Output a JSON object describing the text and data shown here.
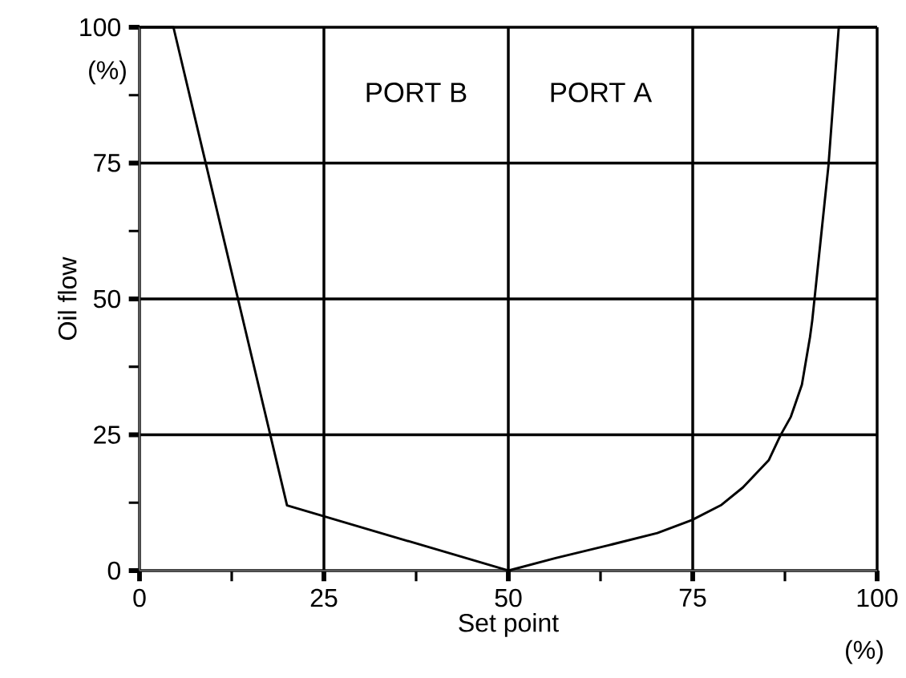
{
  "chart_data": {
    "type": "line",
    "xlabel": "Set point",
    "ylabel": "Oil flow",
    "x": [
      0,
      4.6,
      20,
      50,
      56.4,
      63.7,
      70.2,
      74.9,
      78.9,
      81.8,
      85.3,
      86.9,
      88.3,
      89.8,
      90.9,
      91.2,
      93.4,
      94.8,
      100
    ],
    "values": [
      100,
      100,
      12,
      0,
      2.3,
      4.7,
      6.9,
      9.3,
      12.1,
      15.3,
      20.3,
      24.9,
      28.3,
      34.2,
      43,
      46,
      74.5,
      100,
      100
    ],
    "color": "#000000",
    "xlim": [
      0,
      100
    ],
    "ylim": [
      0,
      100
    ],
    "xticks": [
      0,
      25,
      50,
      75,
      100
    ],
    "yticks": [
      0,
      25,
      50,
      75,
      100
    ],
    "grid": true,
    "marker": "none",
    "line_style": "solid",
    "annotations": [
      "PORT B",
      "PORT A",
      "(%)",
      "(%)"
    ]
  }
}
